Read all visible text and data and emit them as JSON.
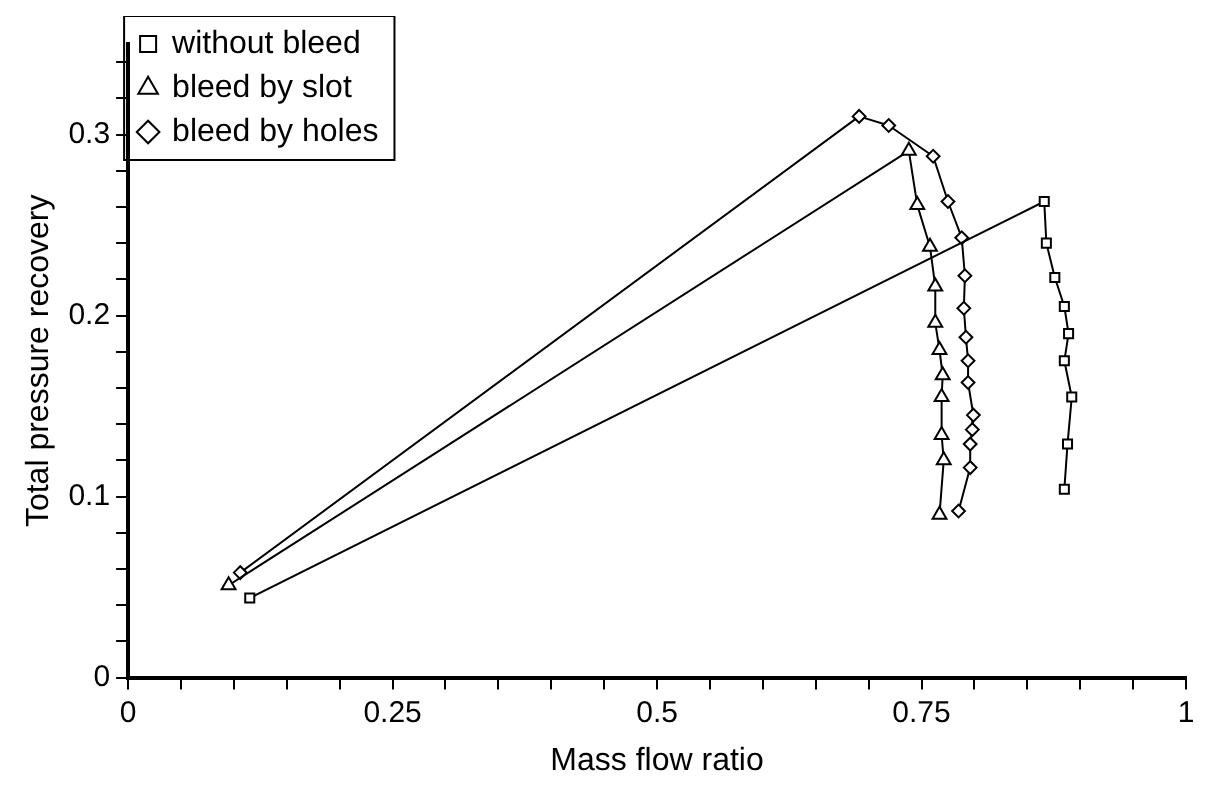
{
  "chart_data": {
    "type": "line",
    "xlabel": "Mass flow ratio",
    "ylabel": "Total pressure recovery",
    "xlim": [
      0,
      1
    ],
    "ylim": [
      0,
      0.35
    ],
    "xticks": [
      0,
      {
        "value": 0.05,
        "label": null
      },
      {
        "value": 0.1,
        "label": null
      },
      {
        "value": 0.15,
        "label": null
      },
      {
        "value": 0.2,
        "label": null
      },
      0.25,
      {
        "value": 0.3,
        "label": null
      },
      {
        "value": 0.35,
        "label": null
      },
      {
        "value": 0.4,
        "label": null
      },
      {
        "value": 0.45,
        "label": null
      },
      0.5,
      {
        "value": 0.55,
        "label": null
      },
      {
        "value": 0.6,
        "label": null
      },
      {
        "value": 0.65,
        "label": null
      },
      {
        "value": 0.7,
        "label": null
      },
      0.75,
      {
        "value": 0.8,
        "label": null
      },
      {
        "value": 0.85,
        "label": null
      },
      {
        "value": 0.9,
        "label": null
      },
      {
        "value": 0.95,
        "label": null
      },
      1
    ],
    "yticks": [
      0,
      {
        "value": 0.02,
        "label": null
      },
      {
        "value": 0.04,
        "label": null
      },
      {
        "value": 0.06,
        "label": null
      },
      {
        "value": 0.08,
        "label": null
      },
      0.1,
      {
        "value": 0.12,
        "label": null
      },
      {
        "value": 0.14,
        "label": null
      },
      {
        "value": 0.16,
        "label": null
      },
      {
        "value": 0.18,
        "label": null
      },
      0.2,
      {
        "value": 0.22,
        "label": null
      },
      {
        "value": 0.24,
        "label": null
      },
      {
        "value": 0.26,
        "label": null
      },
      {
        "value": 0.28,
        "label": null
      },
      0.3,
      {
        "value": 0.32,
        "label": null
      },
      {
        "value": 0.34,
        "label": null
      }
    ],
    "grid": false,
    "legend": "top left",
    "series": [
      {
        "name": "without bleed",
        "color": "#000000",
        "marker": "square",
        "x": [
          0.115,
          0.866,
          0.868,
          0.876,
          0.885,
          0.889,
          0.885,
          0.892,
          0.888,
          0.885
        ],
        "values": [
          0.044,
          0.263,
          0.24,
          0.221,
          0.205,
          0.19,
          0.175,
          0.155,
          0.129,
          0.104
        ]
      },
      {
        "name": "bleed by slot",
        "color": "#000000",
        "marker": "triangle",
        "x": [
          0.095,
          0.738,
          0.746,
          0.758,
          0.763,
          0.763,
          0.767,
          0.77,
          0.769,
          0.769,
          0.771,
          0.767
        ],
        "values": [
          0.051,
          0.291,
          0.261,
          0.238,
          0.216,
          0.196,
          0.181,
          0.167,
          0.155,
          0.134,
          0.12,
          0.09
        ]
      },
      {
        "name": "bleed by holes",
        "color": "#000000",
        "marker": "diamond",
        "x": [
          0.106,
          0.691,
          0.719,
          0.761,
          0.775,
          0.788,
          0.791,
          0.79,
          0.792,
          0.794,
          0.794,
          0.799,
          0.798,
          0.796,
          0.796,
          0.785
        ],
        "values": [
          0.058,
          0.31,
          0.305,
          0.288,
          0.263,
          0.243,
          0.222,
          0.204,
          0.188,
          0.175,
          0.163,
          0.145,
          0.137,
          0.129,
          0.116,
          0.092
        ]
      }
    ]
  }
}
